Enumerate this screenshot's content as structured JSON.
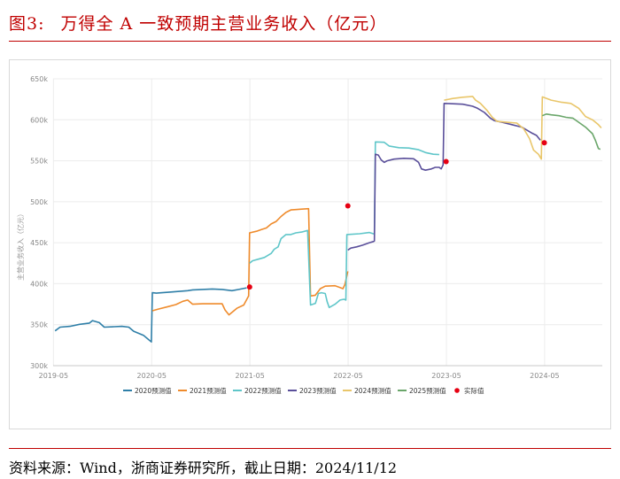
{
  "figure": {
    "label": "图3:",
    "title": "万得全 A 一致预期主营业务收入（亿元）",
    "source": "资料来源：Wind，浙商证券研究所，截止日期：2024/11/12"
  },
  "colors": {
    "title_red": "#c00000",
    "s2020": "#2f7fa8",
    "s2021": "#ef8b2c",
    "s2022": "#5fc6c9",
    "s2023": "#5a4f9a",
    "s2024": "#e9c66a",
    "s2025": "#6aa66a",
    "actual": "#e60012"
  },
  "chart_data": {
    "type": "line",
    "ylabel": "主营业务收入（亿元）",
    "ylim": [
      300000,
      650000
    ],
    "yticks": [
      300000,
      350000,
      400000,
      450000,
      500000,
      550000,
      600000,
      650000
    ],
    "ytick_labels": [
      "300k",
      "350k",
      "400k",
      "450k",
      "500k",
      "550k",
      "600k",
      "650k"
    ],
    "xlim": [
      2019.33,
      2024.92
    ],
    "xticks": [
      2019.333,
      2020.333,
      2021.333,
      2022.333,
      2023.333,
      2024.333
    ],
    "xtick_labels": [
      "2019-05",
      "2020-05",
      "2021-05",
      "2022-05",
      "2023-05",
      "2024-05"
    ],
    "legend_position": "bottom",
    "series": [
      {
        "name": "2020预测值",
        "color": "#2f7fa8",
        "points": [
          [
            2019.35,
            342500
          ],
          [
            2019.4,
            347000
          ],
          [
            2019.5,
            348000
          ],
          [
            2019.6,
            350500
          ],
          [
            2019.7,
            352000
          ],
          [
            2019.73,
            355000
          ],
          [
            2019.8,
            352500
          ],
          [
            2019.85,
            347000
          ],
          [
            2019.95,
            347500
          ],
          [
            2020.03,
            348000
          ],
          [
            2020.1,
            347000
          ],
          [
            2020.15,
            342000
          ],
          [
            2020.25,
            337000
          ],
          [
            2020.33,
            329000
          ],
          [
            2020.34,
            389000
          ],
          [
            2020.38,
            388500
          ],
          [
            2020.5,
            389500
          ],
          [
            2020.6,
            390500
          ],
          [
            2020.7,
            391500
          ],
          [
            2020.75,
            392500
          ],
          [
            2020.85,
            393000
          ],
          [
            2020.95,
            393500
          ],
          [
            2021.05,
            393000
          ],
          [
            2021.15,
            391500
          ],
          [
            2021.22,
            393000
          ],
          [
            2021.3,
            395000
          ]
        ]
      },
      {
        "name": "2021预测值",
        "color": "#ef8b2c",
        "points": [
          [
            2020.34,
            367000
          ],
          [
            2020.4,
            369000
          ],
          [
            2020.5,
            372000
          ],
          [
            2020.58,
            374500
          ],
          [
            2020.65,
            378500
          ],
          [
            2020.7,
            380000
          ],
          [
            2020.75,
            375000
          ],
          [
            2020.85,
            375500
          ],
          [
            2020.95,
            375500
          ],
          [
            2021.05,
            375500
          ],
          [
            2021.08,
            368000
          ],
          [
            2021.12,
            362000
          ],
          [
            2021.2,
            370000
          ],
          [
            2021.27,
            374000
          ],
          [
            2021.32,
            385000
          ],
          [
            2021.33,
            462000
          ],
          [
            2021.4,
            464000
          ],
          [
            2021.45,
            466000
          ],
          [
            2021.5,
            468000
          ],
          [
            2021.55,
            473000
          ],
          [
            2021.6,
            476000
          ],
          [
            2021.65,
            482000
          ],
          [
            2021.7,
            487000
          ],
          [
            2021.75,
            490000
          ],
          [
            2021.8,
            490500
          ],
          [
            2021.86,
            491000
          ],
          [
            2021.93,
            491500
          ],
          [
            2021.95,
            385000
          ],
          [
            2022.0,
            386000
          ],
          [
            2022.05,
            394000
          ],
          [
            2022.1,
            397000
          ],
          [
            2022.2,
            397500
          ],
          [
            2022.28,
            394000
          ],
          [
            2022.3,
            399000
          ],
          [
            2022.33,
            415000
          ]
        ]
      },
      {
        "name": "2022预测值",
        "color": "#5fc6c9",
        "points": [
          [
            2021.33,
            425000
          ],
          [
            2021.36,
            428000
          ],
          [
            2021.42,
            430000
          ],
          [
            2021.48,
            432000
          ],
          [
            2021.55,
            437000
          ],
          [
            2021.58,
            442000
          ],
          [
            2021.62,
            445000
          ],
          [
            2021.65,
            455000
          ],
          [
            2021.7,
            460000
          ],
          [
            2021.75,
            460000
          ],
          [
            2021.8,
            462000
          ],
          [
            2021.86,
            463000
          ],
          [
            2021.92,
            465000
          ],
          [
            2021.95,
            374000
          ],
          [
            2022.0,
            376000
          ],
          [
            2022.03,
            388000
          ],
          [
            2022.06,
            389000
          ],
          [
            2022.1,
            388000
          ],
          [
            2022.12,
            378000
          ],
          [
            2022.14,
            371000
          ],
          [
            2022.2,
            375000
          ],
          [
            2022.25,
            380000
          ],
          [
            2022.29,
            381000
          ],
          [
            2022.31,
            380000
          ],
          [
            2022.32,
            460000
          ],
          [
            2022.45,
            461000
          ],
          [
            2022.55,
            462500
          ],
          [
            2022.6,
            460500
          ],
          [
            2022.61,
            573000
          ],
          [
            2022.7,
            572500
          ],
          [
            2022.75,
            568000
          ],
          [
            2022.85,
            566000
          ],
          [
            2022.95,
            565500
          ],
          [
            2023.05,
            563500
          ],
          [
            2023.12,
            560000
          ],
          [
            2023.2,
            558000
          ],
          [
            2023.26,
            557500
          ]
        ]
      },
      {
        "name": "2023预测值",
        "color": "#5a4f9a",
        "points": [
          [
            2022.33,
            441000
          ],
          [
            2022.36,
            443500
          ],
          [
            2022.42,
            445000
          ],
          [
            2022.48,
            447000
          ],
          [
            2022.55,
            450000
          ],
          [
            2022.59,
            451500
          ],
          [
            2022.6,
            452000
          ],
          [
            2022.61,
            558000
          ],
          [
            2022.64,
            557000
          ],
          [
            2022.67,
            551000
          ],
          [
            2022.7,
            548000
          ],
          [
            2022.73,
            550000
          ],
          [
            2022.8,
            552000
          ],
          [
            2022.9,
            553000
          ],
          [
            2023.0,
            552500
          ],
          [
            2023.05,
            548000
          ],
          [
            2023.08,
            540000
          ],
          [
            2023.12,
            538500
          ],
          [
            2023.18,
            540000
          ],
          [
            2023.22,
            542000
          ],
          [
            2023.26,
            542000
          ],
          [
            2023.28,
            540000
          ],
          [
            2023.3,
            545000
          ],
          [
            2023.31,
            620000
          ],
          [
            2023.4,
            619500
          ],
          [
            2023.5,
            619000
          ],
          [
            2023.6,
            616500
          ],
          [
            2023.65,
            614000
          ],
          [
            2023.72,
            609000
          ],
          [
            2023.78,
            602000
          ],
          [
            2023.82,
            599000
          ],
          [
            2023.9,
            597000
          ],
          [
            2024.0,
            594000
          ],
          [
            2024.1,
            591000
          ],
          [
            2024.2,
            584000
          ],
          [
            2024.25,
            581000
          ],
          [
            2024.29,
            575000
          ]
        ]
      },
      {
        "name": "2024预测值",
        "color": "#e9c66a",
        "points": [
          [
            2023.31,
            624000
          ],
          [
            2023.4,
            626000
          ],
          [
            2023.5,
            627500
          ],
          [
            2023.6,
            628500
          ],
          [
            2023.63,
            624000
          ],
          [
            2023.68,
            620000
          ],
          [
            2023.75,
            611000
          ],
          [
            2023.8,
            603000
          ],
          [
            2023.85,
            598000
          ],
          [
            2023.95,
            597000
          ],
          [
            2024.05,
            596000
          ],
          [
            2024.12,
            589000
          ],
          [
            2024.18,
            577000
          ],
          [
            2024.22,
            563000
          ],
          [
            2024.27,
            558000
          ],
          [
            2024.3,
            552000
          ],
          [
            2024.31,
            628000
          ],
          [
            2024.4,
            624000
          ],
          [
            2024.5,
            621500
          ],
          [
            2024.6,
            620000
          ],
          [
            2024.68,
            614000
          ],
          [
            2024.75,
            604000
          ],
          [
            2024.82,
            600000
          ],
          [
            2024.88,
            594000
          ],
          [
            2024.91,
            590000
          ]
        ]
      },
      {
        "name": "2025预测值",
        "color": "#6aa66a",
        "points": [
          [
            2024.31,
            605000
          ],
          [
            2024.35,
            607000
          ],
          [
            2024.4,
            606000
          ],
          [
            2024.48,
            605000
          ],
          [
            2024.55,
            603000
          ],
          [
            2024.62,
            602000
          ],
          [
            2024.68,
            597000
          ],
          [
            2024.75,
            591000
          ],
          [
            2024.82,
            583000
          ],
          [
            2024.85,
            575000
          ],
          [
            2024.88,
            565000
          ],
          [
            2024.9,
            564000
          ]
        ]
      }
    ],
    "actual": {
      "name": "实际值",
      "color": "#e60012",
      "points": [
        [
          2021.33,
          396000
        ],
        [
          2022.33,
          495000
        ],
        [
          2023.33,
          549000
        ],
        [
          2024.33,
          572000
        ]
      ]
    }
  }
}
